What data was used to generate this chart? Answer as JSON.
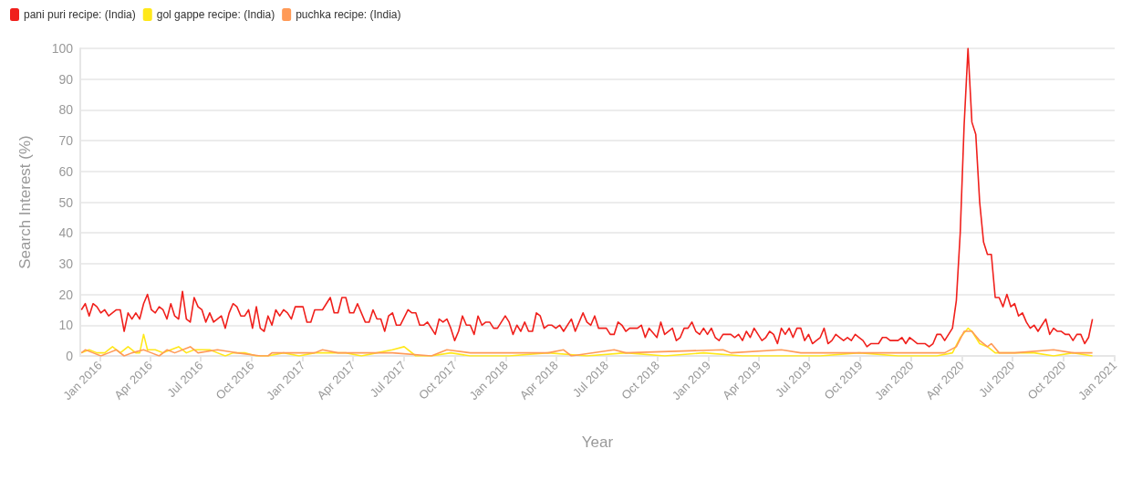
{
  "chart_data": {
    "type": "line",
    "xlabel": "Year",
    "ylabel": "Search Interest (%)",
    "xlim": [
      "2015-11-27",
      "2021-01-01"
    ],
    "xticks": [
      {
        "value": "2016-01-01",
        "label": "Jan 2016"
      },
      {
        "value": "2016-04-01",
        "label": "Apr 2016"
      },
      {
        "value": "2016-07-01",
        "label": "Jul 2016"
      },
      {
        "value": "2016-10-01",
        "label": "Oct 2016"
      },
      {
        "value": "2017-01-01",
        "label": "Jan 2017"
      },
      {
        "value": "2017-04-01",
        "label": "Apr 2017"
      },
      {
        "value": "2017-07-01",
        "label": "Jul 2017"
      },
      {
        "value": "2017-10-01",
        "label": "Oct 2017"
      },
      {
        "value": "2018-01-01",
        "label": "Jan 2018"
      },
      {
        "value": "2018-04-01",
        "label": "Apr 2018"
      },
      {
        "value": "2018-07-01",
        "label": "Jul 2018"
      },
      {
        "value": "2018-10-01",
        "label": "Oct 2018"
      },
      {
        "value": "2019-01-01",
        "label": "Jan 2019"
      },
      {
        "value": "2019-04-01",
        "label": "Apr 2019"
      },
      {
        "value": "2019-07-01",
        "label": "Jul 2019"
      },
      {
        "value": "2019-10-01",
        "label": "Oct 2019"
      },
      {
        "value": "2020-01-01",
        "label": "Jan 2020"
      },
      {
        "value": "2020-04-01",
        "label": "Apr 2020"
      },
      {
        "value": "2020-07-01",
        "label": "Jul 2020"
      },
      {
        "value": "2020-10-01",
        "label": "Oct 2020"
      },
      {
        "value": "2021-01-01",
        "label": "Jan 2021"
      }
    ],
    "ylim": [
      0,
      100
    ],
    "yticks": [
      0,
      10,
      20,
      30,
      40,
      50,
      60,
      70,
      80,
      90,
      100
    ],
    "grid": "y",
    "legend": "top left",
    "marker": "none",
    "line_style": "solid",
    "series": [
      {
        "name": "pani puri recipe: (India)",
        "color": "#f0201c",
        "x": [
          "2015-11-29",
          "2015-12-06",
          "2015-12-13",
          "2015-12-20",
          "2015-12-27",
          "2016-01-03",
          "2016-01-10",
          "2016-01-17",
          "2016-01-31",
          "2016-02-07",
          "2016-02-14",
          "2016-02-21",
          "2016-02-28",
          "2016-03-06",
          "2016-03-13",
          "2016-03-20",
          "2016-03-27",
          "2016-04-03",
          "2016-04-10",
          "2016-04-17",
          "2016-04-24",
          "2016-05-01",
          "2016-05-08",
          "2016-05-15",
          "2016-05-22",
          "2016-05-29",
          "2016-06-05",
          "2016-06-12",
          "2016-06-19",
          "2016-06-26",
          "2016-07-03",
          "2016-07-10",
          "2016-07-17",
          "2016-07-24",
          "2016-08-07",
          "2016-08-14",
          "2016-08-21",
          "2016-08-28",
          "2016-09-04",
          "2016-09-11",
          "2016-09-18",
          "2016-09-25",
          "2016-10-02",
          "2016-10-09",
          "2016-10-16",
          "2016-10-23",
          "2016-10-30",
          "2016-11-06",
          "2016-11-13",
          "2016-11-20",
          "2016-11-27",
          "2016-12-04",
          "2016-12-11",
          "2016-12-18",
          "2017-01-01",
          "2017-01-08",
          "2017-01-15",
          "2017-01-22",
          "2017-02-05",
          "2017-02-19",
          "2017-02-26",
          "2017-03-05",
          "2017-03-12",
          "2017-03-19",
          "2017-03-26",
          "2017-04-02",
          "2017-04-09",
          "2017-04-23",
          "2017-04-30",
          "2017-05-07",
          "2017-05-14",
          "2017-05-21",
          "2017-05-28",
          "2017-06-04",
          "2017-06-11",
          "2017-06-18",
          "2017-06-25",
          "2017-07-09",
          "2017-07-16",
          "2017-07-23",
          "2017-07-30",
          "2017-08-06",
          "2017-08-13",
          "2017-08-27",
          "2017-09-03",
          "2017-09-10",
          "2017-09-17",
          "2017-09-24",
          "2017-10-01",
          "2017-10-08",
          "2017-10-15",
          "2017-10-22",
          "2017-10-29",
          "2017-11-05",
          "2017-11-12",
          "2017-11-19",
          "2017-11-26",
          "2017-12-03",
          "2017-12-10",
          "2017-12-17",
          "2017-12-31",
          "2018-01-07",
          "2018-01-14",
          "2018-01-21",
          "2018-01-28",
          "2018-02-04",
          "2018-02-11",
          "2018-02-18",
          "2018-02-25",
          "2018-03-04",
          "2018-03-11",
          "2018-03-18",
          "2018-03-25",
          "2018-04-01",
          "2018-04-08",
          "2018-04-15",
          "2018-04-29",
          "2018-05-06",
          "2018-05-20",
          "2018-05-27",
          "2018-06-03",
          "2018-06-10",
          "2018-06-17",
          "2018-06-24",
          "2018-07-01",
          "2018-07-08",
          "2018-07-15",
          "2018-07-22",
          "2018-07-29",
          "2018-08-05",
          "2018-08-12",
          "2018-08-26",
          "2018-09-02",
          "2018-09-09",
          "2018-09-16",
          "2018-09-30",
          "2018-10-07",
          "2018-10-14",
          "2018-10-28",
          "2018-11-04",
          "2018-11-11",
          "2018-11-18",
          "2018-11-25",
          "2018-12-02",
          "2018-12-09",
          "2018-12-16",
          "2018-12-23",
          "2018-12-30",
          "2019-01-06",
          "2019-01-13",
          "2019-01-20",
          "2019-01-27",
          "2019-02-10",
          "2019-02-17",
          "2019-02-24",
          "2019-03-03",
          "2019-03-10",
          "2019-03-17",
          "2019-03-24",
          "2019-03-31",
          "2019-04-07",
          "2019-04-14",
          "2019-04-21",
          "2019-04-28",
          "2019-05-05",
          "2019-05-12",
          "2019-05-19",
          "2019-05-26",
          "2019-06-02",
          "2019-06-09",
          "2019-06-16",
          "2019-06-23",
          "2019-06-30",
          "2019-07-07",
          "2019-07-14",
          "2019-07-21",
          "2019-07-28",
          "2019-08-04",
          "2019-08-11",
          "2019-08-18",
          "2019-08-25",
          "2019-09-01",
          "2019-09-08",
          "2019-09-15",
          "2019-09-22",
          "2019-09-29",
          "2019-10-06",
          "2019-10-13",
          "2019-10-20",
          "2019-11-03",
          "2019-11-10",
          "2019-11-17",
          "2019-11-24",
          "2019-12-08",
          "2019-12-15",
          "2019-12-22",
          "2019-12-29",
          "2020-01-05",
          "2020-01-12",
          "2020-01-26",
          "2020-02-02",
          "2020-02-09",
          "2020-02-16",
          "2020-02-23",
          "2020-03-01",
          "2020-03-08",
          "2020-03-15",
          "2020-03-22",
          "2020-03-29",
          "2020-04-05",
          "2020-04-12",
          "2020-04-19",
          "2020-04-26",
          "2020-05-03",
          "2020-05-10",
          "2020-05-17",
          "2020-05-24",
          "2020-05-31",
          "2020-06-07",
          "2020-06-14",
          "2020-06-21",
          "2020-06-28",
          "2020-07-05",
          "2020-07-12",
          "2020-07-19",
          "2020-07-26",
          "2020-08-02",
          "2020-08-09",
          "2020-08-16",
          "2020-08-23",
          "2020-08-30",
          "2020-09-06",
          "2020-09-13",
          "2020-09-20",
          "2020-09-27",
          "2020-10-04",
          "2020-10-11",
          "2020-10-18",
          "2020-10-25",
          "2020-11-01",
          "2020-11-08",
          "2020-11-15",
          "2020-11-22"
        ],
        "values": [
          15,
          17,
          13,
          17,
          16,
          14,
          15,
          13,
          15,
          15,
          8,
          14,
          12,
          14,
          12,
          17,
          20,
          15,
          14,
          16,
          15,
          12,
          17,
          13,
          12,
          21,
          12,
          11,
          19,
          16,
          15,
          11,
          14,
          11,
          13,
          9,
          14,
          17,
          16,
          13,
          13,
          15,
          9,
          16,
          9,
          8,
          13,
          10,
          15,
          13,
          15,
          14,
          12,
          16,
          16,
          11,
          11,
          15,
          15,
          19,
          14,
          14,
          19,
          19,
          14,
          14,
          17,
          11,
          11,
          15,
          12,
          12,
          8,
          13,
          14,
          10,
          10,
          15,
          14,
          14,
          10,
          10,
          11,
          7,
          12,
          11,
          12,
          9,
          5,
          8,
          13,
          10,
          10,
          7,
          13,
          10,
          11,
          11,
          9,
          9,
          13,
          11,
          7,
          10,
          8,
          11,
          8,
          8,
          14,
          13,
          9,
          10,
          10,
          9,
          10,
          8,
          12,
          8,
          14,
          11,
          10,
          13,
          9,
          9,
          9,
          7,
          7,
          11,
          10,
          8,
          9,
          9,
          10,
          6,
          9,
          6,
          11,
          7,
          9,
          5,
          6,
          9,
          9,
          11,
          8,
          7,
          9,
          7,
          9,
          6,
          5,
          7,
          7,
          6,
          7,
          5,
          8,
          6,
          9,
          7,
          5,
          6,
          8,
          7,
          4,
          9,
          7,
          9,
          6,
          9,
          9,
          5,
          7,
          4,
          5,
          6,
          9,
          4,
          5,
          7,
          6,
          5,
          6,
          5,
          7,
          6,
          5,
          3,
          4,
          4,
          6,
          6,
          5,
          5,
          6,
          4,
          6,
          5,
          4,
          4,
          3,
          4,
          7,
          7,
          5,
          7,
          9,
          18,
          40,
          75,
          100,
          76,
          72,
          50,
          37,
          33,
          33,
          19,
          19,
          16,
          20,
          16,
          17,
          13,
          14,
          11,
          9,
          10,
          8,
          10,
          12,
          7,
          9,
          8,
          8,
          7,
          7,
          5,
          7,
          7,
          4,
          6,
          12
        ]
      },
      {
        "name": "gol gappe recipe: (India)",
        "color": "#ffe81a",
        "x": [
          "2015-11-29",
          "2015-12-13",
          "2015-12-27",
          "2016-01-10",
          "2016-01-24",
          "2016-02-07",
          "2016-02-21",
          "2016-03-06",
          "2016-03-13",
          "2016-03-20",
          "2016-03-27",
          "2016-04-10",
          "2016-04-24",
          "2016-05-08",
          "2016-05-22",
          "2016-06-05",
          "2016-06-19",
          "2016-07-03",
          "2016-07-17",
          "2016-07-31",
          "2016-08-14",
          "2016-08-28",
          "2016-09-18",
          "2016-10-09",
          "2016-10-30",
          "2016-11-27",
          "2016-12-25",
          "2017-01-22",
          "2017-02-19",
          "2017-03-19",
          "2017-04-16",
          "2017-05-14",
          "2017-06-11",
          "2017-07-02",
          "2017-07-23",
          "2017-08-20",
          "2017-09-24",
          "2017-10-29",
          "2018-01-07",
          "2018-03-18",
          "2018-05-27",
          "2018-08-05",
          "2018-10-14",
          "2018-12-23",
          "2019-03-03",
          "2019-05-12",
          "2019-07-21",
          "2019-09-29",
          "2019-12-08",
          "2020-02-16",
          "2020-03-15",
          "2020-03-29",
          "2020-04-12",
          "2020-04-19",
          "2020-05-03",
          "2020-05-17",
          "2020-05-31",
          "2020-07-05",
          "2020-08-09",
          "2020-09-13",
          "2020-10-18",
          "2020-11-22"
        ],
        "values": [
          1,
          2,
          1,
          1,
          3,
          1,
          3,
          1,
          1,
          7,
          2,
          2,
          1,
          2,
          3,
          1,
          2,
          2,
          2,
          1,
          0,
          1,
          1,
          0,
          0,
          1,
          0,
          1,
          1,
          1,
          0,
          1,
          2,
          3,
          0,
          0,
          1,
          0,
          0,
          1,
          0,
          1,
          0,
          1,
          0,
          0,
          0,
          1,
          0,
          0,
          1,
          6,
          9,
          8,
          4,
          3,
          1,
          1,
          1,
          0,
          1,
          0
        ]
      },
      {
        "name": "puchka recipe: (India)",
        "color": "#ff9a57",
        "x": [
          "2015-11-29",
          "2015-12-06",
          "2015-12-20",
          "2016-01-03",
          "2016-01-17",
          "2016-01-31",
          "2016-02-14",
          "2016-02-28",
          "2016-03-20",
          "2016-04-03",
          "2016-04-17",
          "2016-05-01",
          "2016-05-15",
          "2016-06-12",
          "2016-06-26",
          "2016-07-31",
          "2016-09-04",
          "2016-10-16",
          "2016-10-30",
          "2016-11-06",
          "2017-01-22",
          "2017-02-05",
          "2017-03-05",
          "2017-06-11",
          "2017-08-20",
          "2017-09-17",
          "2017-10-29",
          "2018-03-18",
          "2018-04-15",
          "2018-04-29",
          "2018-07-15",
          "2018-08-05",
          "2019-01-27",
          "2019-02-10",
          "2019-05-12",
          "2019-06-16",
          "2019-09-29",
          "2020-02-02",
          "2020-03-01",
          "2020-03-22",
          "2020-04-05",
          "2020-04-19",
          "2020-05-03",
          "2020-05-17",
          "2020-05-24",
          "2020-06-07",
          "2020-07-05",
          "2020-09-13",
          "2020-10-18",
          "2020-11-22"
        ],
        "values": [
          1,
          2,
          1,
          0,
          1,
          2,
          0,
          1,
          2,
          1,
          0,
          2,
          1,
          3,
          1,
          2,
          1,
          0,
          0,
          1,
          1,
          2,
          1,
          1,
          0,
          2,
          1,
          1,
          2,
          0,
          2,
          1,
          2,
          1,
          2,
          1,
          1,
          1,
          1,
          3,
          8,
          8,
          5,
          3,
          4,
          1,
          1,
          2,
          1,
          1
        ]
      }
    ]
  }
}
